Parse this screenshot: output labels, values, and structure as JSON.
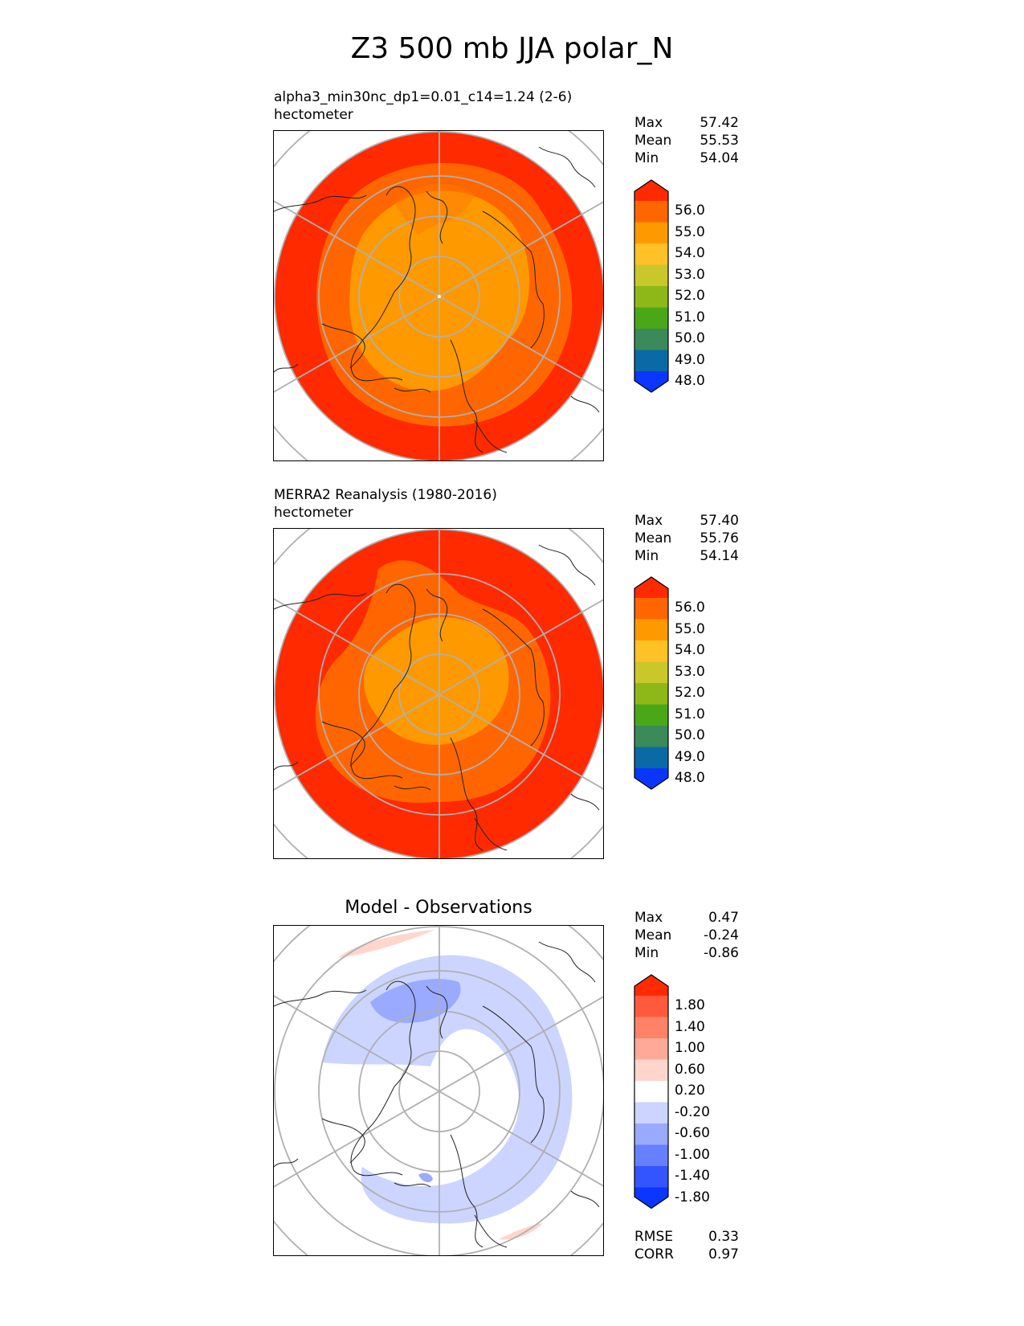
{
  "page": {
    "title": "Z3 500 mb JJA polar_N"
  },
  "panels": [
    {
      "id": "test",
      "title": "alpha3_min30nc_dp1=0.01_c14=1.24 (2-6)",
      "units": "hectometer",
      "stats": {
        "max_label": "Max",
        "max": "57.42",
        "mean_label": "Mean",
        "mean": "55.53",
        "min_label": "Min",
        "min": "54.04"
      }
    },
    {
      "id": "reference",
      "title": "MERRA2 Reanalysis (1980-2016)",
      "units": "hectometer",
      "stats": {
        "max_label": "Max",
        "max": "57.40",
        "mean_label": "Mean",
        "mean": "55.76",
        "min_label": "Min",
        "min": "54.14"
      }
    },
    {
      "id": "diff",
      "title": "Model - Observations",
      "stats": {
        "max_label": "Max",
        "max": "0.47",
        "mean_label": "Mean",
        "mean": "-0.24",
        "min_label": "Min",
        "min": "-0.86"
      },
      "metrics": {
        "rmse_label": "RMSE",
        "rmse": "0.33",
        "corr_label": "CORR",
        "corr": "0.97"
      }
    }
  ],
  "colorbars": {
    "field": {
      "ticks": [
        "56.0",
        "55.0",
        "54.0",
        "53.0",
        "52.0",
        "51.0",
        "50.0",
        "49.0",
        "48.0"
      ],
      "colors": [
        "#ff2a00",
        "#ff6600",
        "#ff9900",
        "#ffc125",
        "#c8c82a",
        "#8db818",
        "#4aa818",
        "#3a8a5a",
        "#0a6aa6",
        "#0a36ff"
      ]
    },
    "diff": {
      "ticks": [
        "1.80",
        "1.40",
        "1.00",
        "0.60",
        "0.20",
        "-0.20",
        "-0.60",
        "-1.00",
        "-1.40",
        "-1.80"
      ],
      "colors": [
        "#ff2a00",
        "#ff5a3c",
        "#ff8266",
        "#ffaa99",
        "#ffd5cc",
        "#ffffff",
        "#cbd5ff",
        "#99aaff",
        "#6680ff",
        "#3355ff",
        "#0a36ff"
      ]
    }
  },
  "chart_data": [
    {
      "type": "heatmap",
      "projection": "north polar stereographic",
      "title": "alpha3_min30nc_dp1=0.01_c14=1.24 (2-6)",
      "units": "hectometer",
      "levels": [
        48.0,
        49.0,
        50.0,
        51.0,
        52.0,
        53.0,
        54.0,
        55.0,
        56.0
      ],
      "max": 57.42,
      "mean": 55.53,
      "min": 54.04
    },
    {
      "type": "heatmap",
      "projection": "north polar stereographic",
      "title": "MERRA2 Reanalysis (1980-2016)",
      "units": "hectometer",
      "levels": [
        48.0,
        49.0,
        50.0,
        51.0,
        52.0,
        53.0,
        54.0,
        55.0,
        56.0
      ],
      "max": 57.4,
      "mean": 55.76,
      "min": 54.14
    },
    {
      "type": "heatmap",
      "projection": "north polar stereographic",
      "title": "Model - Observations",
      "levels": [
        -1.8,
        -1.4,
        -1.0,
        -0.6,
        -0.2,
        0.2,
        0.6,
        1.0,
        1.4,
        1.8
      ],
      "max": 0.47,
      "mean": -0.24,
      "min": -0.86,
      "rmse": 0.33,
      "corr": 0.97
    }
  ]
}
